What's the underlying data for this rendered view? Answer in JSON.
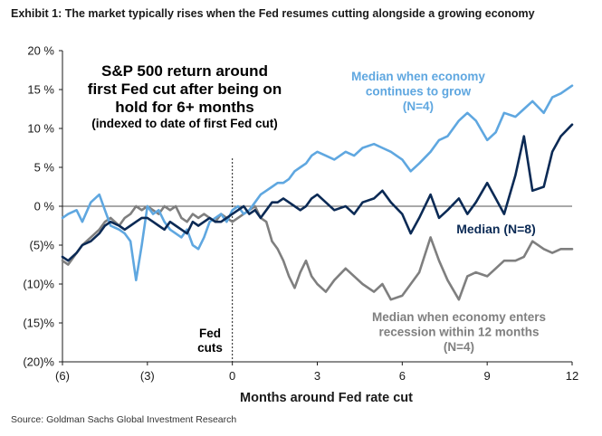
{
  "exhibit_title": "Exhibit 1: The market typically rises when the Fed resumes cutting alongside a growing economy",
  "source": "Source: Goldman Sachs Global Investment Research",
  "chart_data": {
    "type": "line",
    "title_lines": [
      "S&P 500 return around",
      "first Fed cut after being on",
      "hold for 6+ months"
    ],
    "subtitle": "(indexed to date of first Fed cut)",
    "xlabel": "Months around Fed rate cut",
    "ylabel": "",
    "xlim": [
      -6,
      12
    ],
    "ylim": [
      -20,
      20
    ],
    "x_ticks": [
      -6,
      -3,
      0,
      3,
      6,
      9,
      12
    ],
    "x_tick_labels": [
      "(6)",
      "(3)",
      "0",
      "3",
      "6",
      "9",
      "12"
    ],
    "y_ticks": [
      20,
      15,
      10,
      5,
      0,
      -5,
      -10,
      -15,
      -20
    ],
    "y_tick_labels": [
      "20 %",
      "15 %",
      "10 %",
      "5 %",
      "0 %",
      "(5)%",
      "(10)%",
      "(15)%",
      "(20)%"
    ],
    "grid": false,
    "vline_label_lines": [
      "Fed",
      "cuts"
    ],
    "series": [
      {
        "name_lines": [
          "Median when economy",
          "continues to grow",
          "(N=4)"
        ],
        "color": "#5fa7e0",
        "x": [
          -6,
          -5.8,
          -5.5,
          -5.3,
          -5,
          -4.7,
          -4.5,
          -4.3,
          -4,
          -3.8,
          -3.6,
          -3.4,
          -3.2,
          -3,
          -2.8,
          -2.6,
          -2.4,
          -2.2,
          -2,
          -1.8,
          -1.6,
          -1.4,
          -1.2,
          -1,
          -0.8,
          -0.6,
          -0.4,
          -0.2,
          0,
          0.2,
          0.4,
          0.6,
          0.8,
          1,
          1.2,
          1.4,
          1.6,
          1.8,
          2,
          2.2,
          2.4,
          2.6,
          2.8,
          3,
          3.3,
          3.6,
          4,
          4.3,
          4.6,
          5,
          5.3,
          5.6,
          6,
          6.3,
          6.6,
          7,
          7.3,
          7.6,
          8,
          8.3,
          8.6,
          9,
          9.3,
          9.6,
          10,
          10.3,
          10.6,
          11,
          11.3,
          11.6,
          12
        ],
        "y": [
          -1.5,
          -1,
          -0.5,
          -2,
          0.5,
          1.5,
          -0.5,
          -2.5,
          -3,
          -3.5,
          -4.5,
          -9.5,
          -5,
          0,
          -1,
          -0.5,
          -2,
          -3,
          -3.5,
          -4,
          -3,
          -5,
          -5.5,
          -4,
          -2,
          -1.5,
          -1,
          -2,
          -0.5,
          0,
          -1,
          -0.5,
          0.5,
          1.5,
          2,
          2.5,
          3,
          3,
          3.5,
          4.5,
          5,
          5.5,
          6.5,
          7,
          6.5,
          6,
          7,
          6.5,
          7.5,
          8,
          7.5,
          7,
          6,
          4.5,
          5.5,
          7,
          8.5,
          9,
          11,
          12,
          11,
          8.5,
          9.5,
          12,
          11.5,
          12.5,
          13.5,
          12,
          14,
          14.5,
          15.5
        ]
      },
      {
        "name_lines": [
          "Median (N=8)"
        ],
        "color": "#0b2a55",
        "x": [
          -6,
          -5.8,
          -5.5,
          -5.3,
          -5,
          -4.7,
          -4.5,
          -4.3,
          -4,
          -3.8,
          -3.6,
          -3.4,
          -3.2,
          -3,
          -2.8,
          -2.6,
          -2.4,
          -2.2,
          -2,
          -1.8,
          -1.6,
          -1.4,
          -1.2,
          -1,
          -0.8,
          -0.6,
          -0.4,
          -0.2,
          0,
          0.2,
          0.4,
          0.6,
          0.8,
          1,
          1.2,
          1.4,
          1.6,
          1.8,
          2,
          2.2,
          2.4,
          2.6,
          2.8,
          3,
          3.3,
          3.6,
          4,
          4.3,
          4.6,
          5,
          5.3,
          5.6,
          6,
          6.3,
          6.6,
          7,
          7.3,
          7.6,
          8,
          8.3,
          8.6,
          9,
          9.3,
          9.6,
          10,
          10.3,
          10.6,
          11,
          11.3,
          11.6,
          12
        ],
        "y": [
          -6.5,
          -7,
          -6,
          -5,
          -4.5,
          -3.5,
          -2.5,
          -2,
          -2.5,
          -3,
          -2.5,
          -2,
          -1.5,
          -1.5,
          -2,
          -2.5,
          -3,
          -2,
          -2.5,
          -3,
          -3.5,
          -2,
          -2.5,
          -2,
          -1.5,
          -2,
          -2,
          -1.5,
          -1,
          -0.5,
          0,
          -1,
          -0.5,
          -1.5,
          -0.5,
          0.5,
          0.5,
          1,
          0.5,
          0,
          -0.5,
          0,
          1,
          1.5,
          0.5,
          -0.5,
          0,
          -1,
          0.5,
          1,
          2,
          0.5,
          -1,
          -3.5,
          -1.5,
          1.5,
          -1.5,
          -0.5,
          1,
          -1,
          0.5,
          3,
          1,
          -1,
          4,
          9,
          2,
          2.5,
          7,
          9,
          10.5
        ]
      },
      {
        "name_lines": [
          "Median when economy  enters",
          "recession within 12 months",
          "(N=4)"
        ],
        "color": "#7f7f7f",
        "x": [
          -6,
          -5.8,
          -5.5,
          -5.3,
          -5,
          -4.7,
          -4.5,
          -4.3,
          -4,
          -3.8,
          -3.6,
          -3.4,
          -3.2,
          -3,
          -2.8,
          -2.6,
          -2.4,
          -2.2,
          -2,
          -1.8,
          -1.6,
          -1.4,
          -1.2,
          -1,
          -0.8,
          -0.6,
          -0.4,
          -0.2,
          0,
          0.2,
          0.4,
          0.6,
          0.8,
          1,
          1.2,
          1.4,
          1.6,
          1.8,
          2,
          2.2,
          2.4,
          2.6,
          2.8,
          3,
          3.3,
          3.6,
          4,
          4.3,
          4.6,
          5,
          5.3,
          5.6,
          6,
          6.3,
          6.6,
          7,
          7.3,
          7.6,
          8,
          8.3,
          8.6,
          9,
          9.3,
          9.6,
          10,
          10.3,
          10.6,
          11,
          11.3,
          11.6,
          12
        ],
        "y": [
          -7,
          -7.5,
          -6,
          -5,
          -4,
          -3,
          -2,
          -1.5,
          -2.5,
          -1.5,
          -1,
          0,
          -0.5,
          0,
          -0.5,
          -1,
          0,
          -0.5,
          0,
          -1.5,
          -2,
          -1,
          -1.5,
          -1,
          -1.5,
          -2,
          -1,
          -1.5,
          -2,
          -1.5,
          -1,
          -0.5,
          0,
          -1.5,
          -2,
          -4.5,
          -5.5,
          -7,
          -9,
          -10.5,
          -8.5,
          -7,
          -9,
          -10,
          -11,
          -9.5,
          -8,
          -9,
          -10,
          -11,
          -10,
          -12,
          -11.5,
          -10,
          -8.5,
          -4,
          -7,
          -9.5,
          -12,
          -9,
          -8.5,
          -9,
          -8,
          -7,
          -7,
          -6.5,
          -4.5,
          -5.5,
          -6,
          -5.5,
          -5.5
        ]
      }
    ]
  }
}
